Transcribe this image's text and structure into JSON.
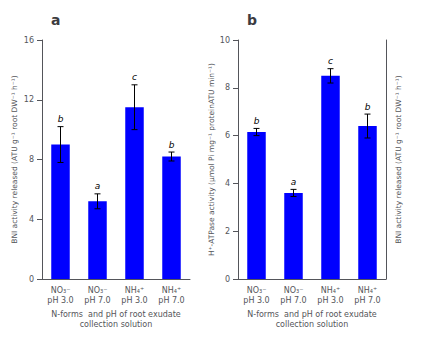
{
  "chart_data": [
    {
      "type": "bar",
      "title": "a",
      "categories": [
        "NO₃⁻\npH 3.0",
        "NO₃⁻\npH 7.0",
        "NH₄⁺\npH 3.0",
        "NH₄⁺\npH 7.0"
      ],
      "values": [
        9.0,
        5.2,
        11.5,
        8.2
      ],
      "errors": [
        1.2,
        0.5,
        1.5,
        0.3
      ],
      "annotations": [
        "b",
        "a",
        "c",
        "b"
      ],
      "color": "#0000FF",
      "xlabel": "N-forms  and pH of root exudate\ncollection solution",
      "ylabel": "BNI activity released (ATU g⁻¹ root DW⁻¹ h⁻¹)",
      "ylim": [
        0,
        16
      ],
      "yticks": [
        0,
        4,
        8,
        12,
        16
      ],
      "grid": false
    },
    {
      "type": "bar",
      "title": "b",
      "categories": [
        "NO₃⁻\npH 3.0",
        "NO₃⁻\npH 7.0",
        "NH₄⁺\npH 3.0",
        "NH₄⁺\npH 7.0"
      ],
      "values": [
        6.15,
        3.6,
        8.5,
        6.4
      ],
      "errors": [
        0.15,
        0.15,
        0.3,
        0.5
      ],
      "annotations": [
        "b",
        "a",
        "c",
        "b"
      ],
      "color": "#0000FF",
      "xlabel": "N-forms  and pH of root exudate\ncollection solution",
      "ylabel": "H⁺-ATPase activity (μmol Pi mg⁻¹ proteinATU min⁻¹)",
      "y2label": "BNI activity released (ATU g⁻¹ root DW⁻¹ h⁻¹)",
      "ylim": [
        0,
        10
      ],
      "yticks": [
        0,
        2,
        4,
        6,
        8,
        10
      ],
      "grid": false
    }
  ]
}
